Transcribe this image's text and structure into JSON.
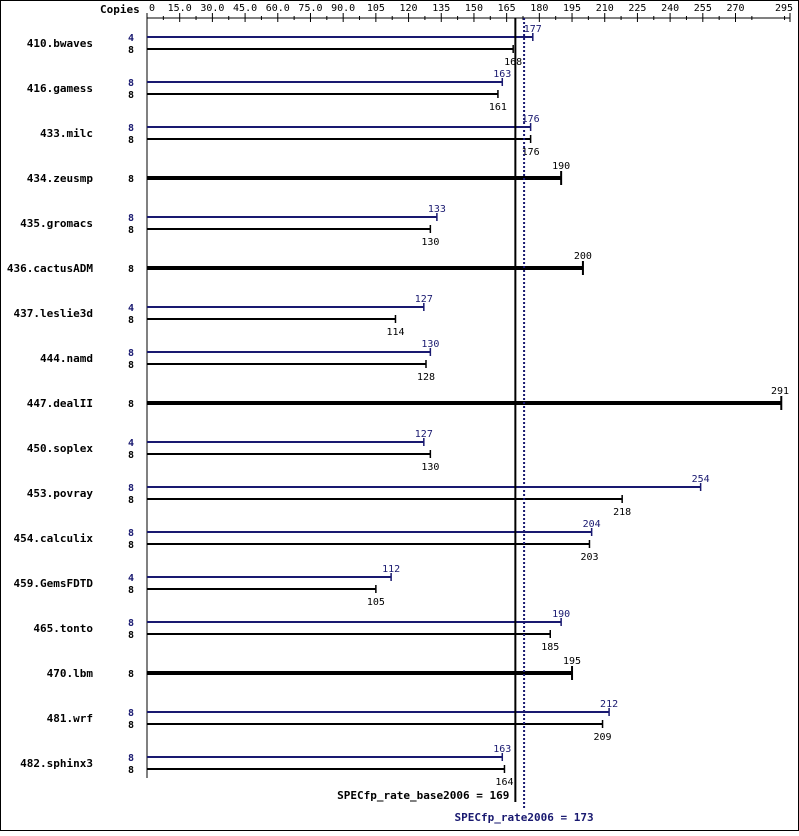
{
  "chart_data": {
    "type": "bar",
    "orientation": "horizontal",
    "x_axis_label": "Copies",
    "x_ticks": [
      0,
      15.0,
      30.0,
      45.0,
      60.0,
      75.0,
      90.0,
      105,
      120,
      135,
      150,
      165,
      180,
      195,
      210,
      225,
      240,
      255,
      270,
      295
    ],
    "x_ticks_labels": [
      "0",
      "15.0",
      "30.0",
      "45.0",
      "60.0",
      "75.0",
      "90.0",
      "105",
      "120",
      "135",
      "150",
      "165",
      "180",
      "195",
      "210",
      "225",
      "240",
      "255",
      "270",
      "295"
    ],
    "xlim": [
      0,
      295
    ],
    "colors": {
      "base": "#000000",
      "peak": "#191970"
    },
    "reference_lines": [
      {
        "label": "SPECfp_rate_base2006 = 169",
        "value": 169,
        "color": "#000000",
        "style": "solid"
      },
      {
        "label": "SPECfp_rate2006 = 173",
        "value": 173,
        "color": "#191970",
        "style": "dotted"
      }
    ],
    "benchmarks": [
      {
        "name": "410.bwaves",
        "peak_copies": "4",
        "peak": 177,
        "base_copies": "8",
        "base": 168
      },
      {
        "name": "416.gamess",
        "peak_copies": "8",
        "peak": 163,
        "base_copies": "8",
        "base": 161
      },
      {
        "name": "433.milc",
        "peak_copies": "8",
        "peak": 176,
        "base_copies": "8",
        "base": 176
      },
      {
        "name": "434.zeusmp",
        "peak_copies": null,
        "peak": null,
        "base_copies": "8",
        "base": 190
      },
      {
        "name": "435.gromacs",
        "peak_copies": "8",
        "peak": 133,
        "base_copies": "8",
        "base": 130
      },
      {
        "name": "436.cactusADM",
        "peak_copies": null,
        "peak": null,
        "base_copies": "8",
        "base": 200
      },
      {
        "name": "437.leslie3d",
        "peak_copies": "4",
        "peak": 127,
        "base_copies": "8",
        "base": 114
      },
      {
        "name": "444.namd",
        "peak_copies": "8",
        "peak": 130,
        "base_copies": "8",
        "base": 128
      },
      {
        "name": "447.dealII",
        "peak_copies": null,
        "peak": null,
        "base_copies": "8",
        "base": 291
      },
      {
        "name": "450.soplex",
        "peak_copies": "4",
        "peak": 127,
        "base_copies": "8",
        "base": 130
      },
      {
        "name": "453.povray",
        "peak_copies": "8",
        "peak": 254,
        "base_copies": "8",
        "base": 218
      },
      {
        "name": "454.calculix",
        "peak_copies": "8",
        "peak": 204,
        "base_copies": "8",
        "base": 203
      },
      {
        "name": "459.GemsFDTD",
        "peak_copies": "4",
        "peak": 112,
        "base_copies": "8",
        "base": 105
      },
      {
        "name": "465.tonto",
        "peak_copies": "8",
        "peak": 190,
        "base_copies": "8",
        "base": 185
      },
      {
        "name": "470.lbm",
        "peak_copies": null,
        "peak": null,
        "base_copies": "8",
        "base": 195
      },
      {
        "name": "481.wrf",
        "peak_copies": "8",
        "peak": 212,
        "base_copies": "8",
        "base": 209
      },
      {
        "name": "482.sphinx3",
        "peak_copies": "8",
        "peak": 163,
        "base_copies": "8",
        "base": 164
      }
    ]
  }
}
